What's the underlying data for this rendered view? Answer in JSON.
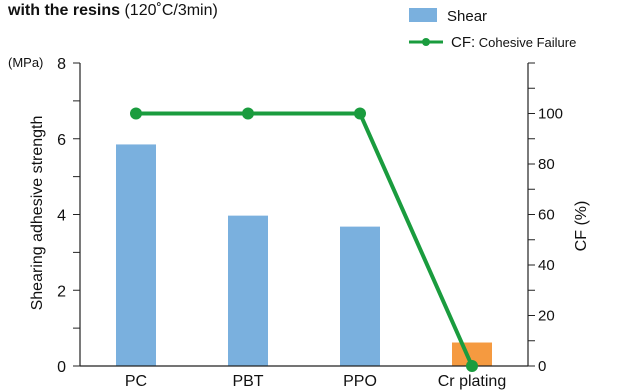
{
  "header": {
    "title_bold": "with the resins",
    "title_rest": " (120˚C/3min)"
  },
  "chart_data": {
    "type": "bar",
    "categories": [
      "PC",
      "PBT",
      "PPO",
      "Cr plating"
    ],
    "series": [
      {
        "name": "Shear",
        "axis": "left",
        "chart_type": "bar",
        "values": [
          5.85,
          3.97,
          3.68,
          0.62
        ],
        "colors": [
          "#7ab0de",
          "#7ab0de",
          "#7ab0de",
          "#f59a40"
        ]
      },
      {
        "name": "CF: Cohesive Failure",
        "name_prefix": "CF:",
        "name_rest": " Cohesive Failure",
        "axis": "right",
        "chart_type": "line",
        "values": [
          100,
          100,
          100,
          0
        ],
        "color": "#1a9c3e"
      }
    ],
    "y_left": {
      "label": "Shearing adhesive strength",
      "unit": "(MPa)",
      "min": 0,
      "max": 8,
      "ticks": [
        0,
        2,
        4,
        6,
        8
      ],
      "minor_step": 1
    },
    "y_right": {
      "label": "CF (%)",
      "min": 0,
      "max": 120,
      "ticks": [
        0,
        20,
        40,
        60,
        80,
        100
      ],
      "minor_step": 10
    },
    "grid": false,
    "legend_position": "top-right"
  }
}
